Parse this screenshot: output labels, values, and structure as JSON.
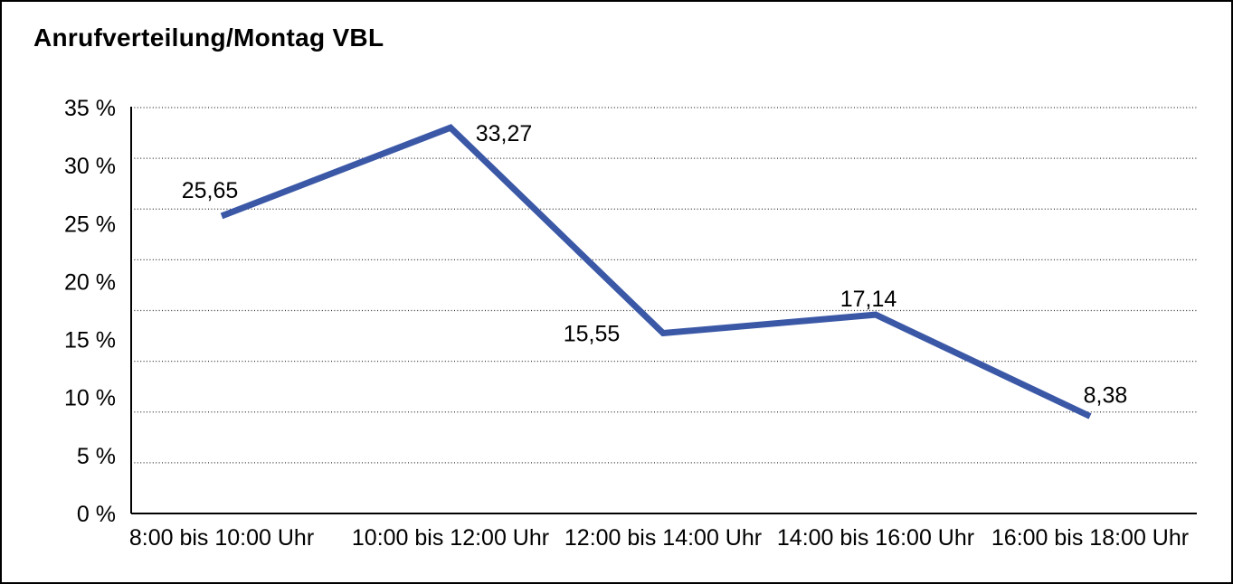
{
  "window": {
    "background": "#ffffff",
    "border_color": "#000000"
  },
  "chart_data": {
    "type": "line",
    "title": "Anrufverteilung/Montag VBL",
    "categories": [
      "8:00 bis 10:00 Uhr",
      "10:00 bis 12:00 Uhr",
      "12:00 bis 14:00 Uhr",
      "14:00 bis 16:00 Uhr",
      "16:00 bis 18:00 Uhr"
    ],
    "series": [
      {
        "values": [
          25.65,
          33.27,
          15.55,
          17.14,
          8.38
        ],
        "color": "#3b58a7"
      }
    ],
    "value_labels": [
      "25,65",
      "33,27",
      "15,55",
      "17,14",
      "8,38"
    ],
    "xlabel": "",
    "ylabel": "",
    "ylim": [
      0,
      35
    ],
    "yticks": [
      {
        "value": 0,
        "label": "0 %"
      },
      {
        "value": 5,
        "label": "5 %"
      },
      {
        "value": 10,
        "label": "10 %"
      },
      {
        "value": 15,
        "label": "15 %"
      },
      {
        "value": 20,
        "label": "20 %"
      },
      {
        "value": 25,
        "label": "25 %"
      },
      {
        "value": 30,
        "label": "30 %"
      },
      {
        "value": 35,
        "label": "35 %"
      }
    ],
    "grid": {
      "horizontal": "dotted",
      "divisions": 8
    },
    "legend": "none",
    "decimal_separator": ","
  },
  "colors": {
    "line": "#3b58a7",
    "text": "#000000",
    "grid": "#333333",
    "axis": "#000000"
  }
}
